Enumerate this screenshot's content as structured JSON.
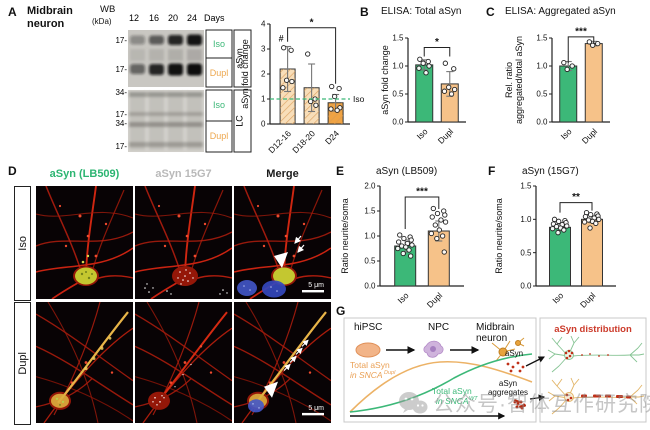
{
  "watermark": {
    "text": "公众号·智体互作研究院"
  },
  "panels": {
    "A": {
      "label": "A",
      "title": "Midbrain neuron",
      "method": "WB",
      "kda": "(kDa)",
      "days": [
        "12",
        "16",
        "20",
        "24"
      ],
      "days_label": "Days",
      "m17": "17-",
      "m34": "34-",
      "blot1_rows": [
        "Iso",
        "Dupl"
      ],
      "blot1_name": "aSyn",
      "blot2_rows": [
        "Iso",
        "Dupl"
      ],
      "blot2_name": "LC"
    },
    "B": {
      "label": "B",
      "title": "ELISA: Total aSyn"
    },
    "C": {
      "label": "C",
      "title": "ELISA: Aggregated aSyn"
    },
    "D": {
      "label": "D",
      "columns": [
        "aSyn (LB509)",
        "aSyn 15G7",
        "Merge"
      ],
      "rows": [
        "Iso",
        "Dupl"
      ],
      "scalebar": "5 μm"
    },
    "E": {
      "label": "E",
      "title": "aSyn (LB509)"
    },
    "F": {
      "label": "F",
      "title": "aSyn (15G7)"
    },
    "G": {
      "label": "G",
      "stage1": "hiPSC",
      "stage2": "NPC",
      "stage3_line1": "Midbrain",
      "stage3_line2": "neuron",
      "curve_dupl_line1": "Total aSyn",
      "curve_dupl_line2": "in SNCA",
      "curve_dupl_sup": "Dupl",
      "curve_wt_line1": "Total aSyn",
      "curve_wt_line2": "in SNCA",
      "curve_wt_sup": "WT",
      "asyn_label": "aSyn",
      "agg_line1": "aSyn",
      "agg_line2": "aggregates",
      "dist_title": "aSyn distribution"
    }
  },
  "colors": {
    "green": "#3cb878",
    "orange": "#f6c289",
    "orange_dark": "#f0a343",
    "red_title": "#cc3b2b",
    "blot_red": "#c92311"
  },
  "chart_data": [
    {
      "id": "chartA",
      "type": "bar",
      "title": "",
      "xlabel": "",
      "ylabel": "aSyn fold change",
      "ylim": [
        0,
        4
      ],
      "yticks": [
        0,
        1,
        2,
        3,
        4
      ],
      "ytick_labels": [
        "0",
        "1",
        "2",
        "3",
        "4"
      ],
      "categories": [
        "D12-16",
        "D18-20",
        "D24"
      ],
      "values": [
        2.2,
        1.45,
        0.85
      ],
      "errors": [
        0.9,
        0.95,
        0.33
      ],
      "points": [
        [
          3.05,
          2.95,
          1.75,
          1.7,
          1.45
        ],
        [
          2.8,
          1.0,
          0.9,
          0.75
        ],
        [
          1.5,
          1.42,
          1.1,
          0.65,
          0.6,
          0.55
        ]
      ],
      "bar_colors": [
        "#f8deb9",
        "#f8deb9",
        "#f0a343"
      ],
      "hatch": "hatchA",
      "refline": {
        "y": 1,
        "label": "Iso",
        "color": "#3cb878"
      },
      "sig": [
        {
          "from": 0,
          "to": 2,
          "label": "*",
          "y": 3.85,
          "d1": 14,
          "d2": 56
        }
      ],
      "hash": {
        "bar": 0,
        "label": "#",
        "y": 3.3
      }
    },
    {
      "id": "chartB",
      "type": "bar",
      "title": "ELISA: Total aSyn",
      "xlabel": "",
      "ylabel": "aSyn fold change",
      "ylim": [
        0,
        1.5
      ],
      "yticks": [
        0,
        0.5,
        1,
        1.5
      ],
      "ytick_labels": [
        "0.0",
        "0.5",
        "1.0",
        "1.5"
      ],
      "categories": [
        "Iso",
        "Dupl"
      ],
      "values": [
        1.02,
        0.68
      ],
      "errors": [
        0.09,
        0.22
      ],
      "points": [
        [
          1.12,
          1.08,
          1.05,
          1.0,
          0.96,
          0.88
        ],
        [
          1.05,
          0.95,
          0.62,
          0.58,
          0.55,
          0.5
        ]
      ],
      "bar_colors": [
        "#3cb878",
        "#f6c289"
      ],
      "sig": [
        {
          "from": 0,
          "to": 1,
          "label": "*",
          "y": 1.33,
          "d1": 9,
          "d2": 9
        }
      ]
    },
    {
      "id": "chartC",
      "type": "bar",
      "title": "ELISA: Aggregated aSyn",
      "xlabel": "",
      "ylabel": "Rel. ratio aggregated/total aSyn",
      "ylabel_lines": [
        "Rel. ratio",
        "aggregated/total aSyn"
      ],
      "ylim": [
        0,
        1.5
      ],
      "yticks": [
        0,
        0.5,
        1,
        1.5
      ],
      "ytick_labels": [
        "0.0",
        "0.5",
        "1.0",
        "1.5"
      ],
      "categories": [
        "Iso",
        "Dupl"
      ],
      "values": [
        1.0,
        1.4
      ],
      "errors": [
        0.08,
        0.04
      ],
      "points": [
        [
          1.06,
          1.0,
          0.94
        ],
        [
          1.43,
          1.4,
          1.37
        ]
      ],
      "bar_colors": [
        "#3cb878",
        "#f6c289"
      ],
      "sig": [
        {
          "from": 0,
          "to": 1,
          "label": "***",
          "y": 1.52,
          "d1": 26,
          "d2": 7
        }
      ]
    },
    {
      "id": "chartE",
      "type": "bar",
      "title": "aSyn (LB509)",
      "xlabel": "",
      "ylabel": "Ratio neurite/soma",
      "ylim": [
        0,
        2
      ],
      "yticks": [
        0,
        0.5,
        1,
        1.5,
        2
      ],
      "ytick_labels": [
        "0.0",
        "0.5",
        "1.0",
        "1.5",
        "2.0"
      ],
      "categories": [
        "Iso",
        "Dupl"
      ],
      "values": [
        0.8,
        1.1
      ],
      "errors": [
        0.12,
        0.2
      ],
      "points": [
        [
          1.02,
          0.98,
          0.95,
          0.92,
          0.88,
          0.85,
          0.82,
          0.8,
          0.78,
          0.75,
          0.72,
          0.65,
          0.6
        ],
        [
          1.55,
          1.5,
          1.45,
          1.42,
          1.38,
          1.32,
          1.28,
          1.22,
          1.12,
          1.05,
          1.0,
          0.95,
          0.68
        ]
      ],
      "bar_colors": [
        "#3cb878",
        "#f6c289"
      ],
      "sig": [
        {
          "from": 0,
          "to": 1,
          "label": "***",
          "y": 1.78,
          "d1": 32,
          "d2": 12
        }
      ]
    },
    {
      "id": "chartF",
      "type": "bar",
      "title": "aSyn (15G7)",
      "xlabel": "",
      "ylabel": "Ratio neurite/soma",
      "ylim": [
        0,
        1.5
      ],
      "yticks": [
        0,
        0.5,
        1,
        1.5
      ],
      "ytick_labels": [
        "0.0",
        "0.5",
        "1.0",
        "1.5"
      ],
      "categories": [
        "Iso",
        "Dupl"
      ],
      "values": [
        0.88,
        1.0
      ],
      "errors": [
        0.05,
        0.05
      ],
      "points": [
        [
          1.0,
          0.98,
          0.97,
          0.95,
          0.93,
          0.92,
          0.9,
          0.89,
          0.87,
          0.86,
          0.84,
          0.8
        ],
        [
          1.1,
          1.08,
          1.07,
          1.05,
          1.04,
          1.02,
          1.0,
          0.99,
          0.97,
          0.96,
          0.94,
          0.87
        ]
      ],
      "bar_colors": [
        "#3cb878",
        "#f6c289"
      ],
      "sig": [
        {
          "from": 0,
          "to": 1,
          "label": "**",
          "y": 1.25,
          "d1": 10,
          "d2": 8
        }
      ]
    }
  ]
}
